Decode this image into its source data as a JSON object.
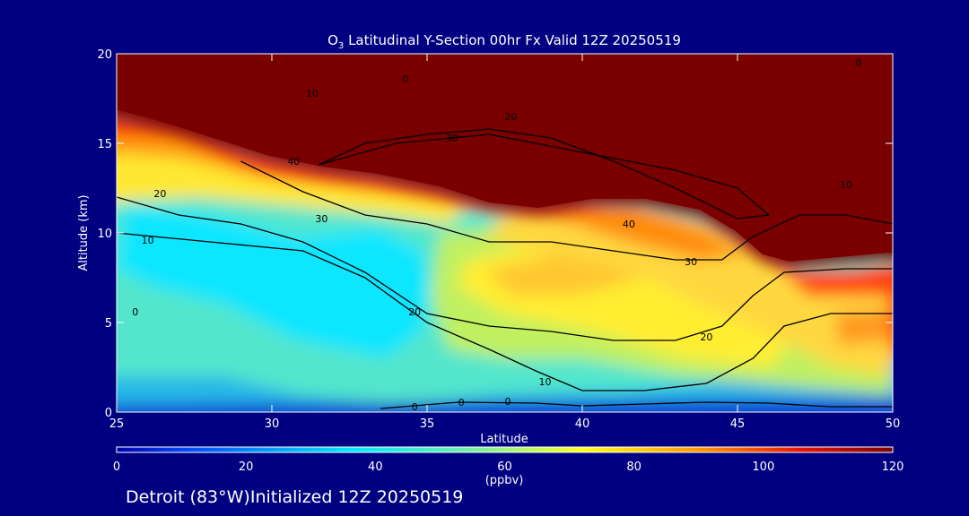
{
  "chart_data": {
    "type": "heatmap",
    "title_chem": "O",
    "title_sub": "3",
    "title_rest": " Latitudinal Y-Section 00hr  Fx Valid 12Z 20250519",
    "xlabel": "Latitude",
    "ylabel": "Altitude (km)",
    "xlim": [
      25,
      50
    ],
    "ylim": [
      0,
      20
    ],
    "xticks": [
      25,
      30,
      35,
      40,
      45,
      50
    ],
    "yticks": [
      0,
      5,
      10,
      15,
      20
    ],
    "colorbar": {
      "label": "(ppbv)",
      "range": [
        0,
        120
      ],
      "ticks": [
        0,
        20,
        40,
        60,
        80,
        100,
        120
      ]
    },
    "contours": [
      {
        "level": 0,
        "x": [
          33.5,
          36,
          38.5,
          40,
          42,
          44,
          46,
          48,
          50
        ],
        "y": [
          0.2,
          0.55,
          0.5,
          0.35,
          0.45,
          0.55,
          0.5,
          0.3,
          0.3
        ]
      },
      {
        "level": 10,
        "x": [
          25,
          28,
          31,
          33,
          35,
          37,
          38.5,
          40,
          42,
          44,
          45.5,
          46.5,
          48,
          50
        ],
        "y": [
          10,
          9.5,
          9,
          7.5,
          5,
          3.5,
          2.3,
          1.2,
          1.2,
          1.6,
          3,
          4.8,
          5.5,
          5.5
        ]
      },
      {
        "level": 20,
        "x": [
          25,
          27,
          29,
          31,
          33,
          35,
          37,
          39,
          41,
          43,
          44.5,
          45.5,
          46.5,
          48.5,
          50
        ],
        "y": [
          12,
          11,
          10.5,
          9.5,
          7.8,
          5.5,
          4.8,
          4.5,
          4,
          4,
          4.8,
          6.5,
          7.8,
          8,
          8
        ]
      },
      {
        "level": 30,
        "x": [
          29,
          31,
          33,
          35,
          37,
          39,
          41,
          43,
          44.5,
          45.5,
          47,
          48.5,
          50
        ],
        "y": [
          14,
          12.3,
          11,
          10.5,
          9.5,
          9.5,
          9,
          8.5,
          8.5,
          9.8,
          11,
          11,
          10.5
        ]
      },
      {
        "level": 40,
        "x": [
          31.5,
          33,
          35,
          37,
          39,
          41,
          43,
          45,
          46,
          45,
          43,
          40,
          37,
          34,
          31.5
        ],
        "y": [
          13.8,
          15,
          15.5,
          15.8,
          15.3,
          14,
          12.5,
          10.8,
          11,
          12.5,
          13.5,
          14.5,
          15.5,
          15,
          13.8
        ]
      }
    ],
    "contour_labels": [
      {
        "text": "0",
        "x": 34.6,
        "y": 0.3
      },
      {
        "text": "0",
        "x": 36.1,
        "y": 0.55
      },
      {
        "text": "0",
        "x": 37.6,
        "y": 0.6
      },
      {
        "text": "10",
        "x": 26,
        "y": 9.6
      },
      {
        "text": "10",
        "x": 31.3,
        "y": 17.8
      },
      {
        "text": "10",
        "x": 38.8,
        "y": 1.7
      },
      {
        "text": "10",
        "x": 48.5,
        "y": 12.7
      },
      {
        "text": "20",
        "x": 26.4,
        "y": 12.2
      },
      {
        "text": "20",
        "x": 34.6,
        "y": 5.6
      },
      {
        "text": "20",
        "x": 44,
        "y": 4.2
      },
      {
        "text": "20",
        "x": 37.7,
        "y": 16.5
      },
      {
        "text": "30",
        "x": 31.6,
        "y": 10.8
      },
      {
        "text": "30",
        "x": 35.8,
        "y": 15.3
      },
      {
        "text": "30",
        "x": 43.5,
        "y": 8.4
      },
      {
        "text": "40",
        "x": 30.7,
        "y": 14
      },
      {
        "text": "40",
        "x": 41.5,
        "y": 10.5
      },
      {
        "text": "0",
        "x": 25.6,
        "y": 5.6
      },
      {
        "text": "0",
        "x": 34.3,
        "y": 18.6
      },
      {
        "text": "0",
        "x": 48.9,
        "y": 19.5
      }
    ]
  },
  "footer": "Detroit (83°W)Initialized 12Z 20250519"
}
